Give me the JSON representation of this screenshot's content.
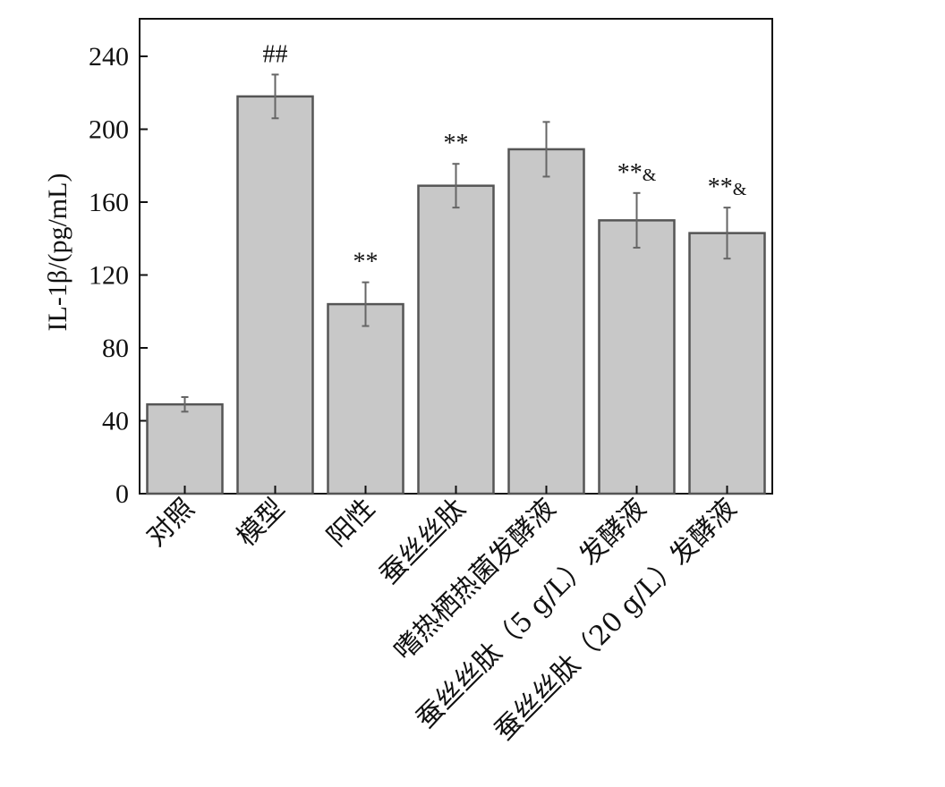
{
  "chart_data": {
    "type": "bar",
    "title": "",
    "xlabel": "",
    "ylabel": "IL-1β/(pg/mL)",
    "ylim": [
      0,
      260
    ],
    "yticks": [
      0,
      40,
      80,
      120,
      160,
      200,
      240
    ],
    "grid": false,
    "categories": [
      "对照",
      "模型",
      "阳性",
      "蚕丝丝肽",
      "嗜热栖热菌发酵液",
      "蚕丝丝肽（5 g/L）发酵液",
      "蚕丝丝肽（20 g/L）发酵液"
    ],
    "values": [
      49,
      218,
      104,
      169,
      189,
      150,
      143
    ],
    "errors": [
      4,
      12,
      12,
      12,
      15,
      15,
      14
    ],
    "annotations": [
      {
        "main": "",
        "suffix": ""
      },
      {
        "main": "##",
        "suffix": ""
      },
      {
        "main": "**",
        "suffix": ""
      },
      {
        "main": "**",
        "suffix": ""
      },
      {
        "main": "",
        "suffix": ""
      },
      {
        "main": "**",
        "suffix": "&"
      },
      {
        "main": "**",
        "suffix": "&"
      }
    ],
    "colors": {
      "bar_fill": "#c8c8c8",
      "bar_stroke": "#555555",
      "error_bar": "#666666",
      "axis": "#111111"
    }
  }
}
